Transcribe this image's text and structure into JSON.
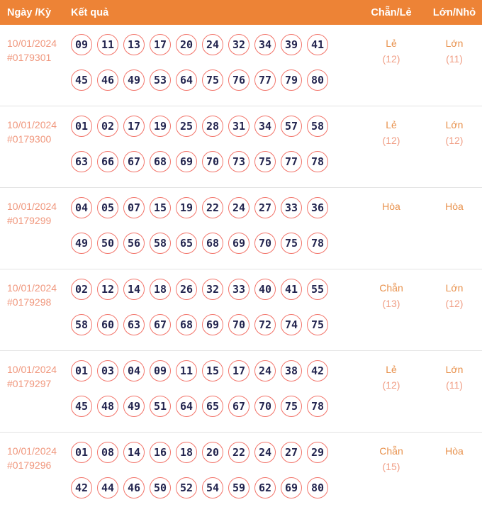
{
  "table": {
    "header": {
      "col_date": "Ngày /Kỳ",
      "col_result": "Kết quả",
      "col_parity": "Chẵn/Lẻ",
      "col_size": "Lớn/Nhỏ"
    },
    "rows": [
      {
        "date": "10/01/2024",
        "draw_id": "#0179301",
        "numbers_line1": [
          "09",
          "11",
          "13",
          "17",
          "20",
          "24",
          "32",
          "34",
          "39",
          "41"
        ],
        "numbers_line2": [
          "45",
          "46",
          "49",
          "53",
          "64",
          "75",
          "76",
          "77",
          "79",
          "80"
        ],
        "parity": "Lẻ",
        "parity_count": "(12)",
        "size": "Lớn",
        "size_count": "(11)"
      },
      {
        "date": "10/01/2024",
        "draw_id": "#0179300",
        "numbers_line1": [
          "01",
          "02",
          "17",
          "19",
          "25",
          "28",
          "31",
          "34",
          "57",
          "58"
        ],
        "numbers_line2": [
          "63",
          "66",
          "67",
          "68",
          "69",
          "70",
          "73",
          "75",
          "77",
          "78"
        ],
        "parity": "Lẻ",
        "parity_count": "(12)",
        "size": "Lớn",
        "size_count": "(12)"
      },
      {
        "date": "10/01/2024",
        "draw_id": "#0179299",
        "numbers_line1": [
          "04",
          "05",
          "07",
          "15",
          "19",
          "22",
          "24",
          "27",
          "33",
          "36"
        ],
        "numbers_line2": [
          "49",
          "50",
          "56",
          "58",
          "65",
          "68",
          "69",
          "70",
          "75",
          "78"
        ],
        "parity": "Hòa",
        "parity_count": "",
        "size": "Hòa",
        "size_count": ""
      },
      {
        "date": "10/01/2024",
        "draw_id": "#0179298",
        "numbers_line1": [
          "02",
          "12",
          "14",
          "18",
          "26",
          "32",
          "33",
          "40",
          "41",
          "55"
        ],
        "numbers_line2": [
          "58",
          "60",
          "63",
          "67",
          "68",
          "69",
          "70",
          "72",
          "74",
          "75"
        ],
        "parity": "Chẵn",
        "parity_count": "(13)",
        "size": "Lớn",
        "size_count": "(12)"
      },
      {
        "date": "10/01/2024",
        "draw_id": "#0179297",
        "numbers_line1": [
          "01",
          "03",
          "04",
          "09",
          "11",
          "15",
          "17",
          "24",
          "38",
          "42"
        ],
        "numbers_line2": [
          "45",
          "48",
          "49",
          "51",
          "64",
          "65",
          "67",
          "70",
          "75",
          "78"
        ],
        "parity": "Lẻ",
        "parity_count": "(12)",
        "size": "Lớn",
        "size_count": "(11)"
      },
      {
        "date": "10/01/2024",
        "draw_id": "#0179296",
        "numbers_line1": [
          "01",
          "08",
          "14",
          "16",
          "18",
          "20",
          "22",
          "24",
          "27",
          "29"
        ],
        "numbers_line2": [
          "42",
          "44",
          "46",
          "50",
          "52",
          "54",
          "59",
          "62",
          "69",
          "80"
        ],
        "parity": "Chẵn",
        "parity_count": "(15)",
        "size": "Hòa",
        "size_count": ""
      }
    ]
  },
  "colors": {
    "header_bg": "#ED8336",
    "header_text": "#FFFFFF",
    "date_text": "#F0977D",
    "label_text": "#E8914C",
    "count_text": "#F09E85",
    "ball_border": "#F2756B",
    "ball_text": "#23254F",
    "divider": "#E3E3E3"
  }
}
